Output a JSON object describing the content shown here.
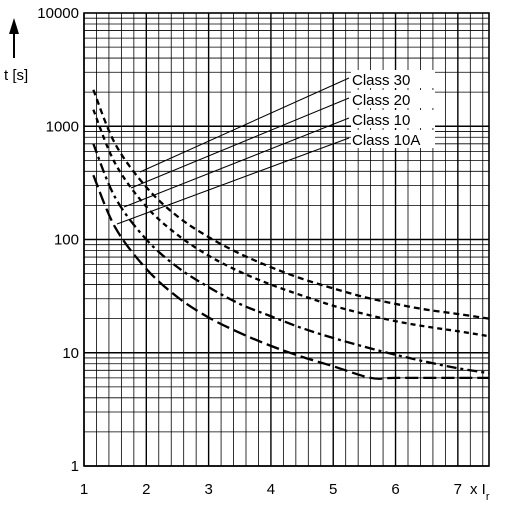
{
  "chart_data": {
    "type": "line",
    "title": "",
    "xlabel": "x I",
    "xlabel_subscript": "r",
    "ylabel": "t [s]",
    "xlim": [
      1,
      7.5
    ],
    "ylim": [
      1,
      10000
    ],
    "y_scale": "log",
    "grid": true,
    "x_ticks": [
      "1",
      "2",
      "3",
      "4",
      "5",
      "6",
      "7"
    ],
    "y_ticks": [
      "1",
      "10",
      "100",
      "1000",
      "10000"
    ],
    "legend_placement": "top-right",
    "series": [
      {
        "name": "Class 30",
        "style": "dashed",
        "x": [
          1.15,
          1.5,
          2.0,
          2.5,
          3.0,
          3.5,
          4.0,
          4.5,
          5.0,
          5.5,
          6.0,
          6.5,
          7.0,
          7.5
        ],
        "y": [
          2100,
          700,
          290,
          160,
          105,
          75,
          57,
          45,
          37,
          31,
          27,
          24,
          22,
          20
        ]
      },
      {
        "name": "Class 20",
        "style": "short-dashed",
        "x": [
          1.15,
          1.5,
          2.0,
          2.5,
          3.0,
          3.5,
          4.0,
          4.5,
          5.0,
          5.5,
          6.0,
          6.5,
          7.0,
          7.5
        ],
        "y": [
          1400,
          470,
          195,
          110,
          72,
          52,
          40,
          32,
          26,
          22,
          19,
          17,
          15.5,
          14
        ]
      },
      {
        "name": "Class 10",
        "style": "dash-dot",
        "x": [
          1.15,
          1.5,
          2.0,
          2.5,
          3.0,
          3.5,
          4.0,
          4.5,
          5.0,
          5.5,
          6.0,
          6.5,
          7.0,
          7.5
        ],
        "y": [
          700,
          235,
          100,
          57,
          38,
          27,
          21,
          16.5,
          13.5,
          11.3,
          9.6,
          8.3,
          7.3,
          6.6
        ]
      },
      {
        "name": "Class 10A",
        "style": "long-dashed",
        "x": [
          1.15,
          1.5,
          2.0,
          2.5,
          3.0,
          3.5,
          4.0,
          4.5,
          5.0,
          5.6,
          6.0,
          7.0,
          7.5
        ],
        "y": [
          370,
          128,
          55,
          31,
          20.5,
          15,
          11.5,
          9.2,
          7.6,
          6.0,
          6.0,
          6.0,
          6.0
        ]
      }
    ]
  }
}
